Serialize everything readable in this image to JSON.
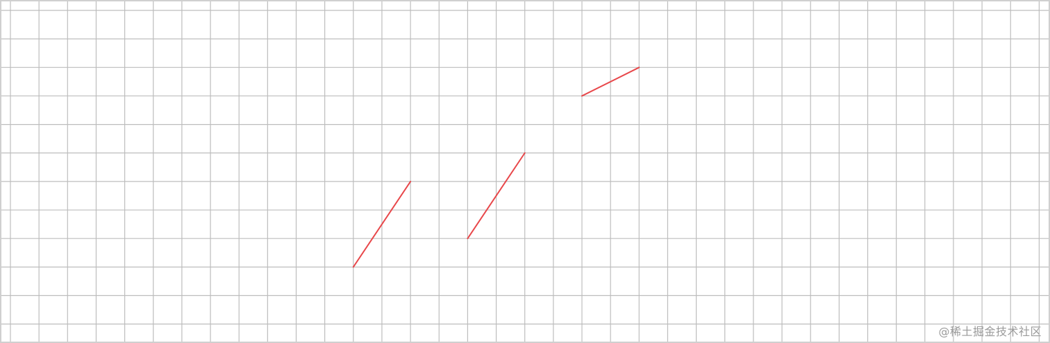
{
  "grid": {
    "line_color": "#bdbdbd",
    "border_color": "#cfcfcf",
    "background": "#ffffff"
  },
  "segments_color": "#e8474a",
  "segments": [
    {
      "from": [
        12,
        9
      ],
      "to": [
        14,
        6
      ]
    },
    {
      "from": [
        16,
        8
      ],
      "to": [
        18,
        5
      ]
    },
    {
      "from": [
        20,
        3
      ],
      "to": [
        22,
        2
      ]
    }
  ],
  "watermark": {
    "text": "@稀土掘金技术社区"
  }
}
